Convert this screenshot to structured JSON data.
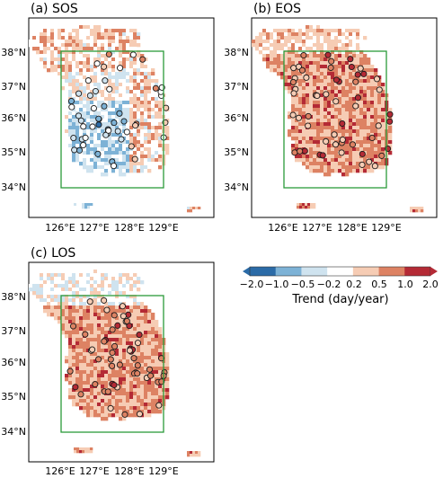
{
  "panels": [
    {
      "title": "(a) SOS",
      "mode": "sos"
    },
    {
      "title": "(b) EOS",
      "mode": "eos"
    },
    {
      "title": "(c) LOS",
      "mode": "los"
    }
  ],
  "lat_ticks": [
    "38°N",
    "37°N",
    "36°N",
    "35°N",
    "34°N"
  ],
  "lon_ticks": [
    "126°E",
    "127°E",
    "128°E",
    "129°E"
  ],
  "colorbar": {
    "label": "Trend (day/year)",
    "ticks": [
      "−2.0",
      "−1.0",
      "−0.5",
      "−0.2",
      "0.2",
      "0.5",
      "1.0",
      "2.0"
    ],
    "colors": [
      "#2b6ba7",
      "#7db2d6",
      "#cfe3ef",
      "#ffffff",
      "#f6ccb4",
      "#dd8263",
      "#b42a35"
    ]
  },
  "study_box_color": "#2b9a3a"
}
